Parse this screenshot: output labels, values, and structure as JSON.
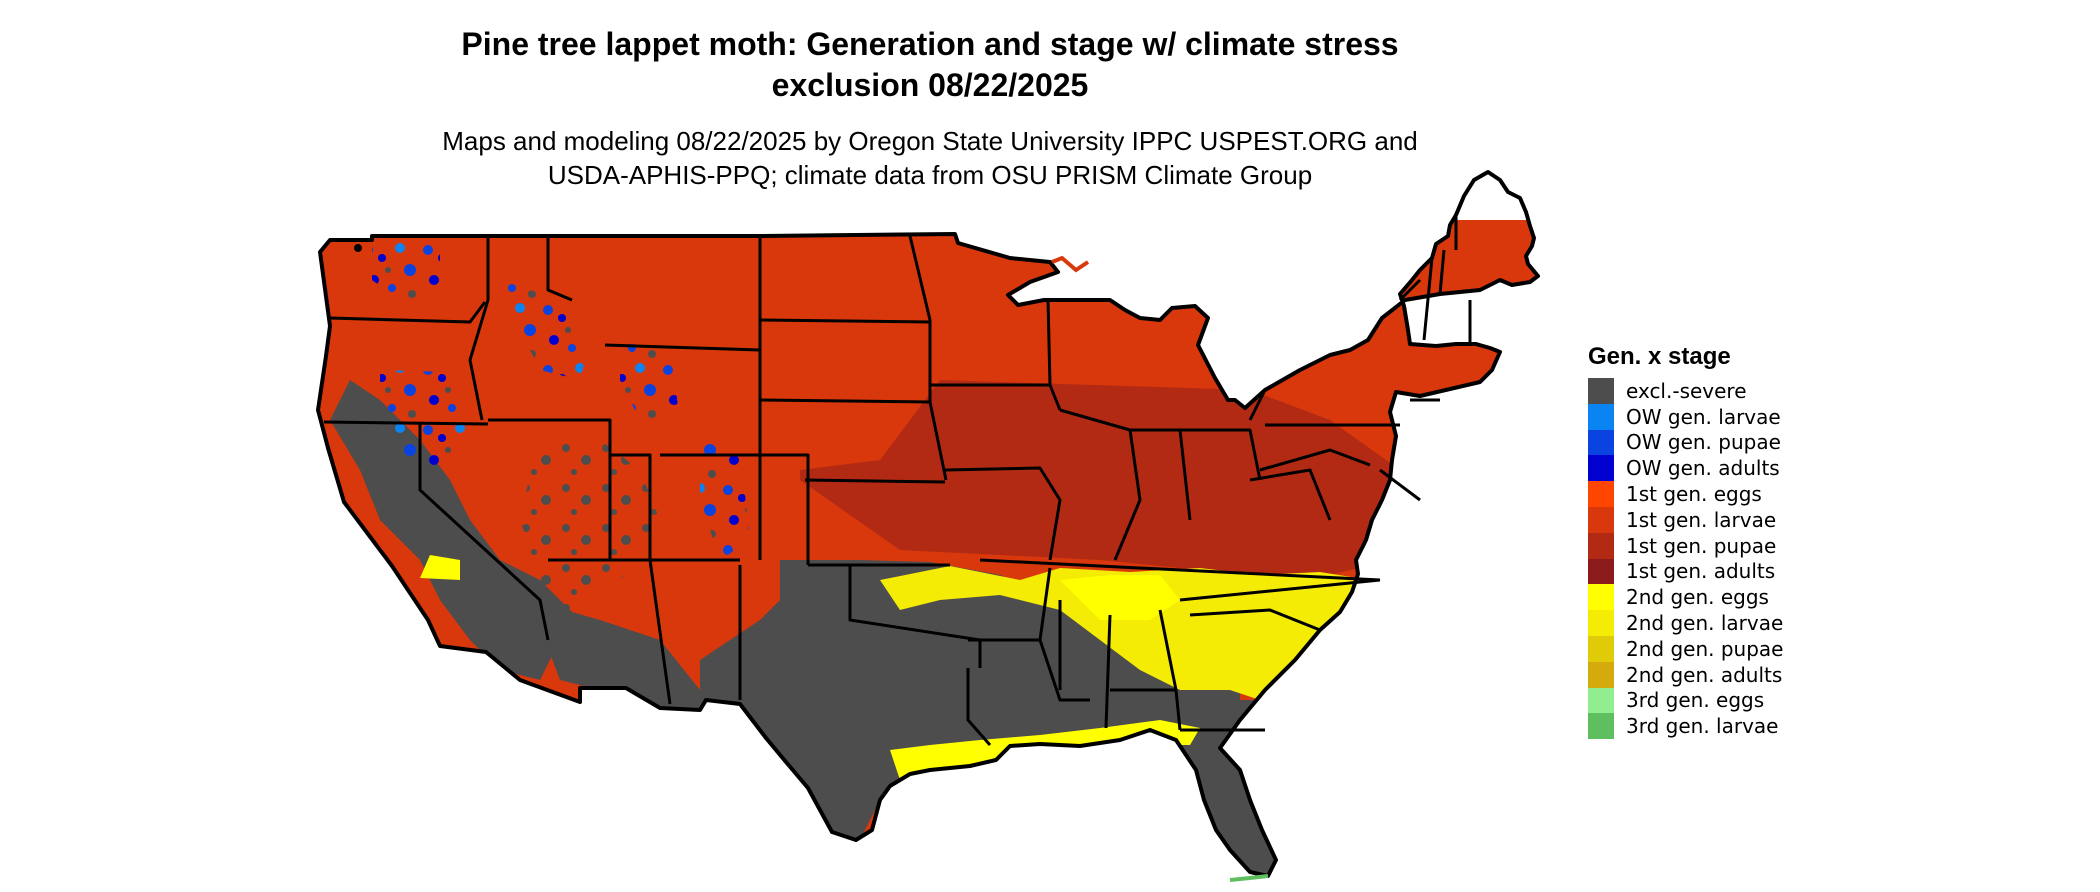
{
  "title_lines": [
    "Pine tree lappet moth: Generation and stage w/ climate stress",
    "exclusion 08/22/2025"
  ],
  "subtitle_lines": [
    "Maps and modeling 08/22/2025 by Oregon State University IPPC USPEST.ORG and",
    "USDA-APHIS-PPQ; climate data from OSU PRISM Climate Group"
  ],
  "legend": {
    "title": "Gen. x stage",
    "items": [
      {
        "label": "excl.-severe",
        "color": "#4d4d4d"
      },
      {
        "label": "OW gen. larvae",
        "color": "#0a84f2"
      },
      {
        "label": "OW gen. pupae",
        "color": "#0a43e0"
      },
      {
        "label": "OW gen. adults",
        "color": "#0000d0"
      },
      {
        "label": "1st gen. eggs",
        "color": "#ff4500"
      },
      {
        "label": "1st gen. larvae",
        "color": "#d8380c"
      },
      {
        "label": "1st gen. pupae",
        "color": "#b32a14"
      },
      {
        "label": "1st gen. adults",
        "color": "#8b1a1a"
      },
      {
        "label": "2nd gen. eggs",
        "color": "#ffff00"
      },
      {
        "label": "2nd gen. larvae",
        "color": "#f4ec05"
      },
      {
        "label": "2nd gen. pupae",
        "color": "#e0cb08"
      },
      {
        "label": "2nd gen. adults",
        "color": "#d4aa0c"
      },
      {
        "label": "3rd gen. eggs",
        "color": "#90ee90"
      },
      {
        "label": "3rd gen. larvae",
        "color": "#5fbf5f"
      }
    ]
  }
}
